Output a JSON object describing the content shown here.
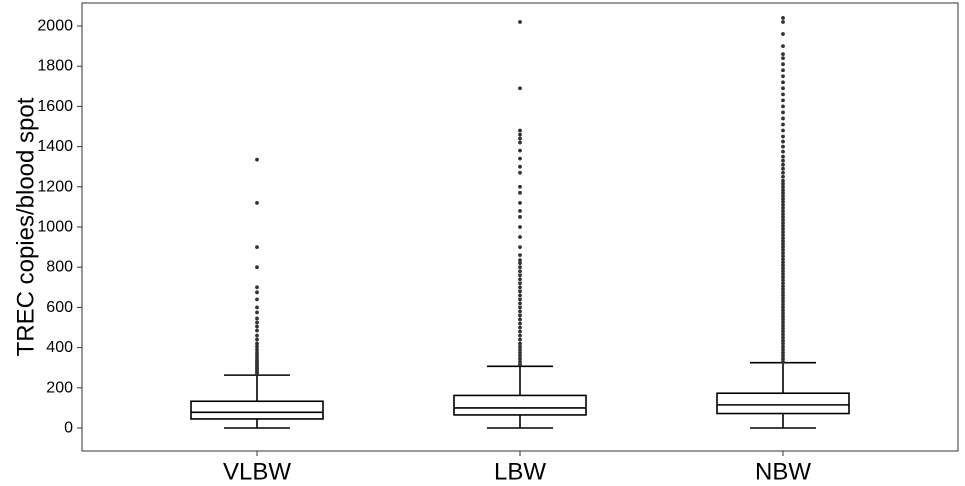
{
  "chart_data": {
    "type": "box",
    "title": "",
    "xlabel": "",
    "ylabel": "TREC copies/blood spot",
    "ylim": [
      -100,
      2060
    ],
    "yticks": [
      0,
      200,
      400,
      600,
      800,
      1000,
      1200,
      1400,
      1600,
      1800,
      2000
    ],
    "grid": false,
    "categories": [
      "VLBW",
      "LBW",
      "NBW"
    ],
    "boxes": [
      {
        "category": "VLBW",
        "whisker_low": 0,
        "q1": 45,
        "median": 78,
        "q3": 133,
        "whisker_high": 263,
        "outliers": [
          270,
          278,
          286,
          294,
          300,
          308,
          316,
          324,
          332,
          340,
          352,
          364,
          376,
          390,
          405,
          420,
          440,
          460,
          485,
          505,
          525,
          545,
          575,
          600,
          640,
          675,
          700,
          800,
          900,
          1120,
          1335
        ]
      },
      {
        "category": "LBW",
        "whisker_low": 0,
        "q1": 65,
        "median": 100,
        "q3": 162,
        "whisker_high": 307,
        "outliers": [
          315,
          330,
          345,
          360,
          375,
          390,
          405,
          420,
          440,
          460,
          480,
          500,
          520,
          540,
          560,
          580,
          600,
          620,
          640,
          660,
          680,
          700,
          720,
          740,
          760,
          780,
          800,
          820,
          835,
          860,
          900,
          950,
          1000,
          1050,
          1080,
          1120,
          1170,
          1200,
          1270,
          1300,
          1340,
          1380,
          1420,
          1440,
          1460,
          1480,
          1690,
          2020
        ]
      },
      {
        "category": "NBW",
        "whisker_low": 0,
        "q1": 72,
        "median": 115,
        "q3": 173,
        "whisker_high": 325,
        "outliers": [
          330,
          345,
          360,
          375,
          390,
          405,
          420,
          435,
          450,
          465,
          480,
          495,
          510,
          525,
          540,
          555,
          570,
          585,
          600,
          615,
          630,
          645,
          660,
          675,
          690,
          705,
          720,
          735,
          750,
          765,
          780,
          795,
          810,
          825,
          840,
          855,
          870,
          885,
          900,
          915,
          930,
          945,
          960,
          975,
          990,
          1005,
          1020,
          1035,
          1050,
          1065,
          1080,
          1095,
          1110,
          1125,
          1140,
          1155,
          1170,
          1185,
          1200,
          1215,
          1230,
          1250,
          1270,
          1290,
          1310,
          1330,
          1350,
          1375,
          1400,
          1425,
          1450,
          1480,
          1510,
          1540,
          1570,
          1600,
          1630,
          1660,
          1690,
          1720,
          1750,
          1780,
          1810,
          1840,
          1860,
          1900,
          1960,
          2020,
          2040
        ]
      }
    ]
  }
}
